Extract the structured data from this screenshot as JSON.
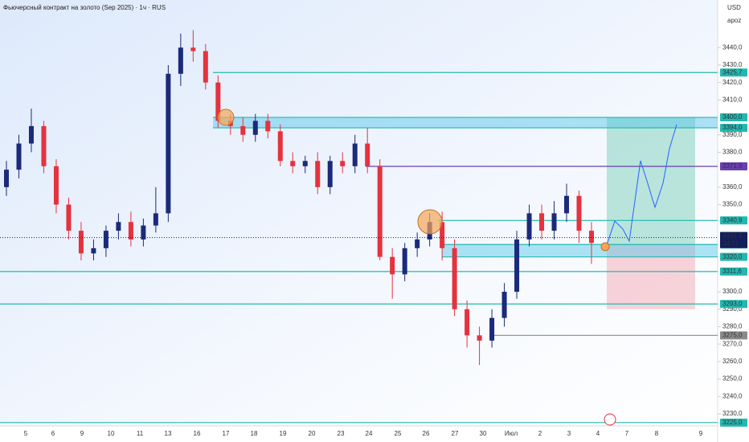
{
  "chart_data": {
    "type": "candlestick",
    "title": "Фьючерсный контракт на золото (Sep 2025) · 1ч · RUS",
    "currency": "USD",
    "scale_mode": "apoz",
    "categories": [
      "5",
      "6",
      "9",
      "10",
      "11",
      "13",
      "16",
      "17",
      "18",
      "19",
      "20",
      "23",
      "24",
      "25",
      "26",
      "27",
      "30",
      "Июл",
      "2",
      "3",
      "4",
      "7",
      "8",
      "9"
    ],
    "series": [
      {
        "up_color": "#1b2a7a",
        "down_color": "#e5323f",
        "open": [
          3360,
          3370,
          3385,
          3395,
          3372,
          3350,
          3335,
          3322,
          3325,
          3335,
          3340,
          3330,
          3338,
          3345,
          3425,
          3440,
          3438,
          3420,
          3398,
          3395,
          3390,
          3398,
          3392,
          3375,
          3372,
          3375,
          3360,
          3375,
          3372,
          3385,
          3372,
          3320,
          3310,
          3325,
          3330,
          3340,
          3325,
          3290,
          3275,
          3272,
          3285,
          3300,
          3330,
          3345,
          3335,
          3345,
          3355,
          3335
        ],
        "high": [
          3375,
          3390,
          3405,
          3398,
          3376,
          3354,
          3340,
          3330,
          3338,
          3345,
          3346,
          3342,
          3360,
          3430,
          3448,
          3450,
          3442,
          3424,
          3402,
          3400,
          3402,
          3402,
          3396,
          3380,
          3378,
          3380,
          3378,
          3380,
          3390,
          3394,
          3376,
          3325,
          3328,
          3334,
          3345,
          3346,
          3330,
          3295,
          3280,
          3290,
          3305,
          3335,
          3350,
          3350,
          3352,
          3362,
          3358,
          3340
        ],
        "low": [
          3355,
          3365,
          3380,
          3368,
          3345,
          3330,
          3318,
          3318,
          3320,
          3330,
          3326,
          3326,
          3334,
          3340,
          3418,
          3432,
          3416,
          3394,
          3390,
          3386,
          3386,
          3388,
          3372,
          3368,
          3368,
          3356,
          3356,
          3368,
          3368,
          3368,
          3318,
          3296,
          3306,
          3320,
          3326,
          3318,
          3286,
          3268,
          3258,
          3268,
          3280,
          3296,
          3326,
          3330,
          3330,
          3340,
          3328,
          3316
        ],
        "close": [
          3370,
          3385,
          3395,
          3372,
          3350,
          3335,
          3322,
          3325,
          3335,
          3340,
          3330,
          3338,
          3345,
          3425,
          3440,
          3438,
          3420,
          3398,
          3395,
          3390,
          3398,
          3392,
          3375,
          3372,
          3375,
          3360,
          3375,
          3372,
          3385,
          3372,
          3320,
          3310,
          3325,
          3330,
          3340,
          3325,
          3290,
          3275,
          3272,
          3285,
          3300,
          3330,
          3345,
          3335,
          3345,
          3355,
          3335,
          3328
        ]
      }
    ],
    "levels": [
      {
        "value": 3425.7,
        "label": "3425,7",
        "color": "#22b8b0"
      },
      {
        "value": 3400.0,
        "label": "3400,0",
        "color": "#22b8b0"
      },
      {
        "value": 3394.0,
        "label": "3394,0",
        "color": "#22b8b0"
      },
      {
        "value": 3371.9,
        "label": "3371,9",
        "color": "#6a3fb0"
      },
      {
        "value": 3340.9,
        "label": "3340,9",
        "color": "#22b8b0"
      },
      {
        "value": 3327.1,
        "label": "3327,1",
        "color": "#22b8b0"
      },
      {
        "value": 3320.0,
        "label": "3320,0",
        "color": "#22b8b0"
      },
      {
        "value": 3311.6,
        "label": "3311,6",
        "color": "#22b8b0"
      },
      {
        "value": 3293.0,
        "label": "3293,0",
        "color": "#22b8b0"
      },
      {
        "value": 3275.0,
        "label": "3275,0",
        "color": "#8a8a8a"
      },
      {
        "value": 3225.0,
        "label": "3225,0",
        "color": "#22b8b0"
      }
    ],
    "last_price": {
      "value": 3331.1,
      "label": "3331,1",
      "timer": "24:21",
      "color": "#131e5c"
    },
    "position": {
      "target": 3400.0,
      "entry": 3327.1,
      "stop": 3290
    },
    "ylim": [
      3224,
      3467.3
    ],
    "yticks": [
      {
        "value": 3440,
        "label": "3440,0"
      },
      {
        "value": 3430,
        "label": "3430,0"
      },
      {
        "value": 3420,
        "label": "3420,0"
      },
      {
        "value": 3410,
        "label": "3410,0"
      },
      {
        "value": 3390,
        "label": "3390,0"
      },
      {
        "value": 3380,
        "label": "3380,0"
      },
      {
        "value": 3360,
        "label": "3360,0"
      },
      {
        "value": 3350,
        "label": "3350,0"
      },
      {
        "value": 3300,
        "label": "3300,0"
      },
      {
        "value": 3290,
        "label": "3290,0"
      },
      {
        "value": 3280,
        "label": "3280,0"
      },
      {
        "value": 3270,
        "label": "3270,0"
      },
      {
        "value": 3260,
        "label": "3260,0"
      },
      {
        "value": 3250,
        "label": "3250,0"
      },
      {
        "value": 3240,
        "label": "3240,0"
      },
      {
        "value": 3230,
        "label": "3230,0"
      }
    ]
  }
}
